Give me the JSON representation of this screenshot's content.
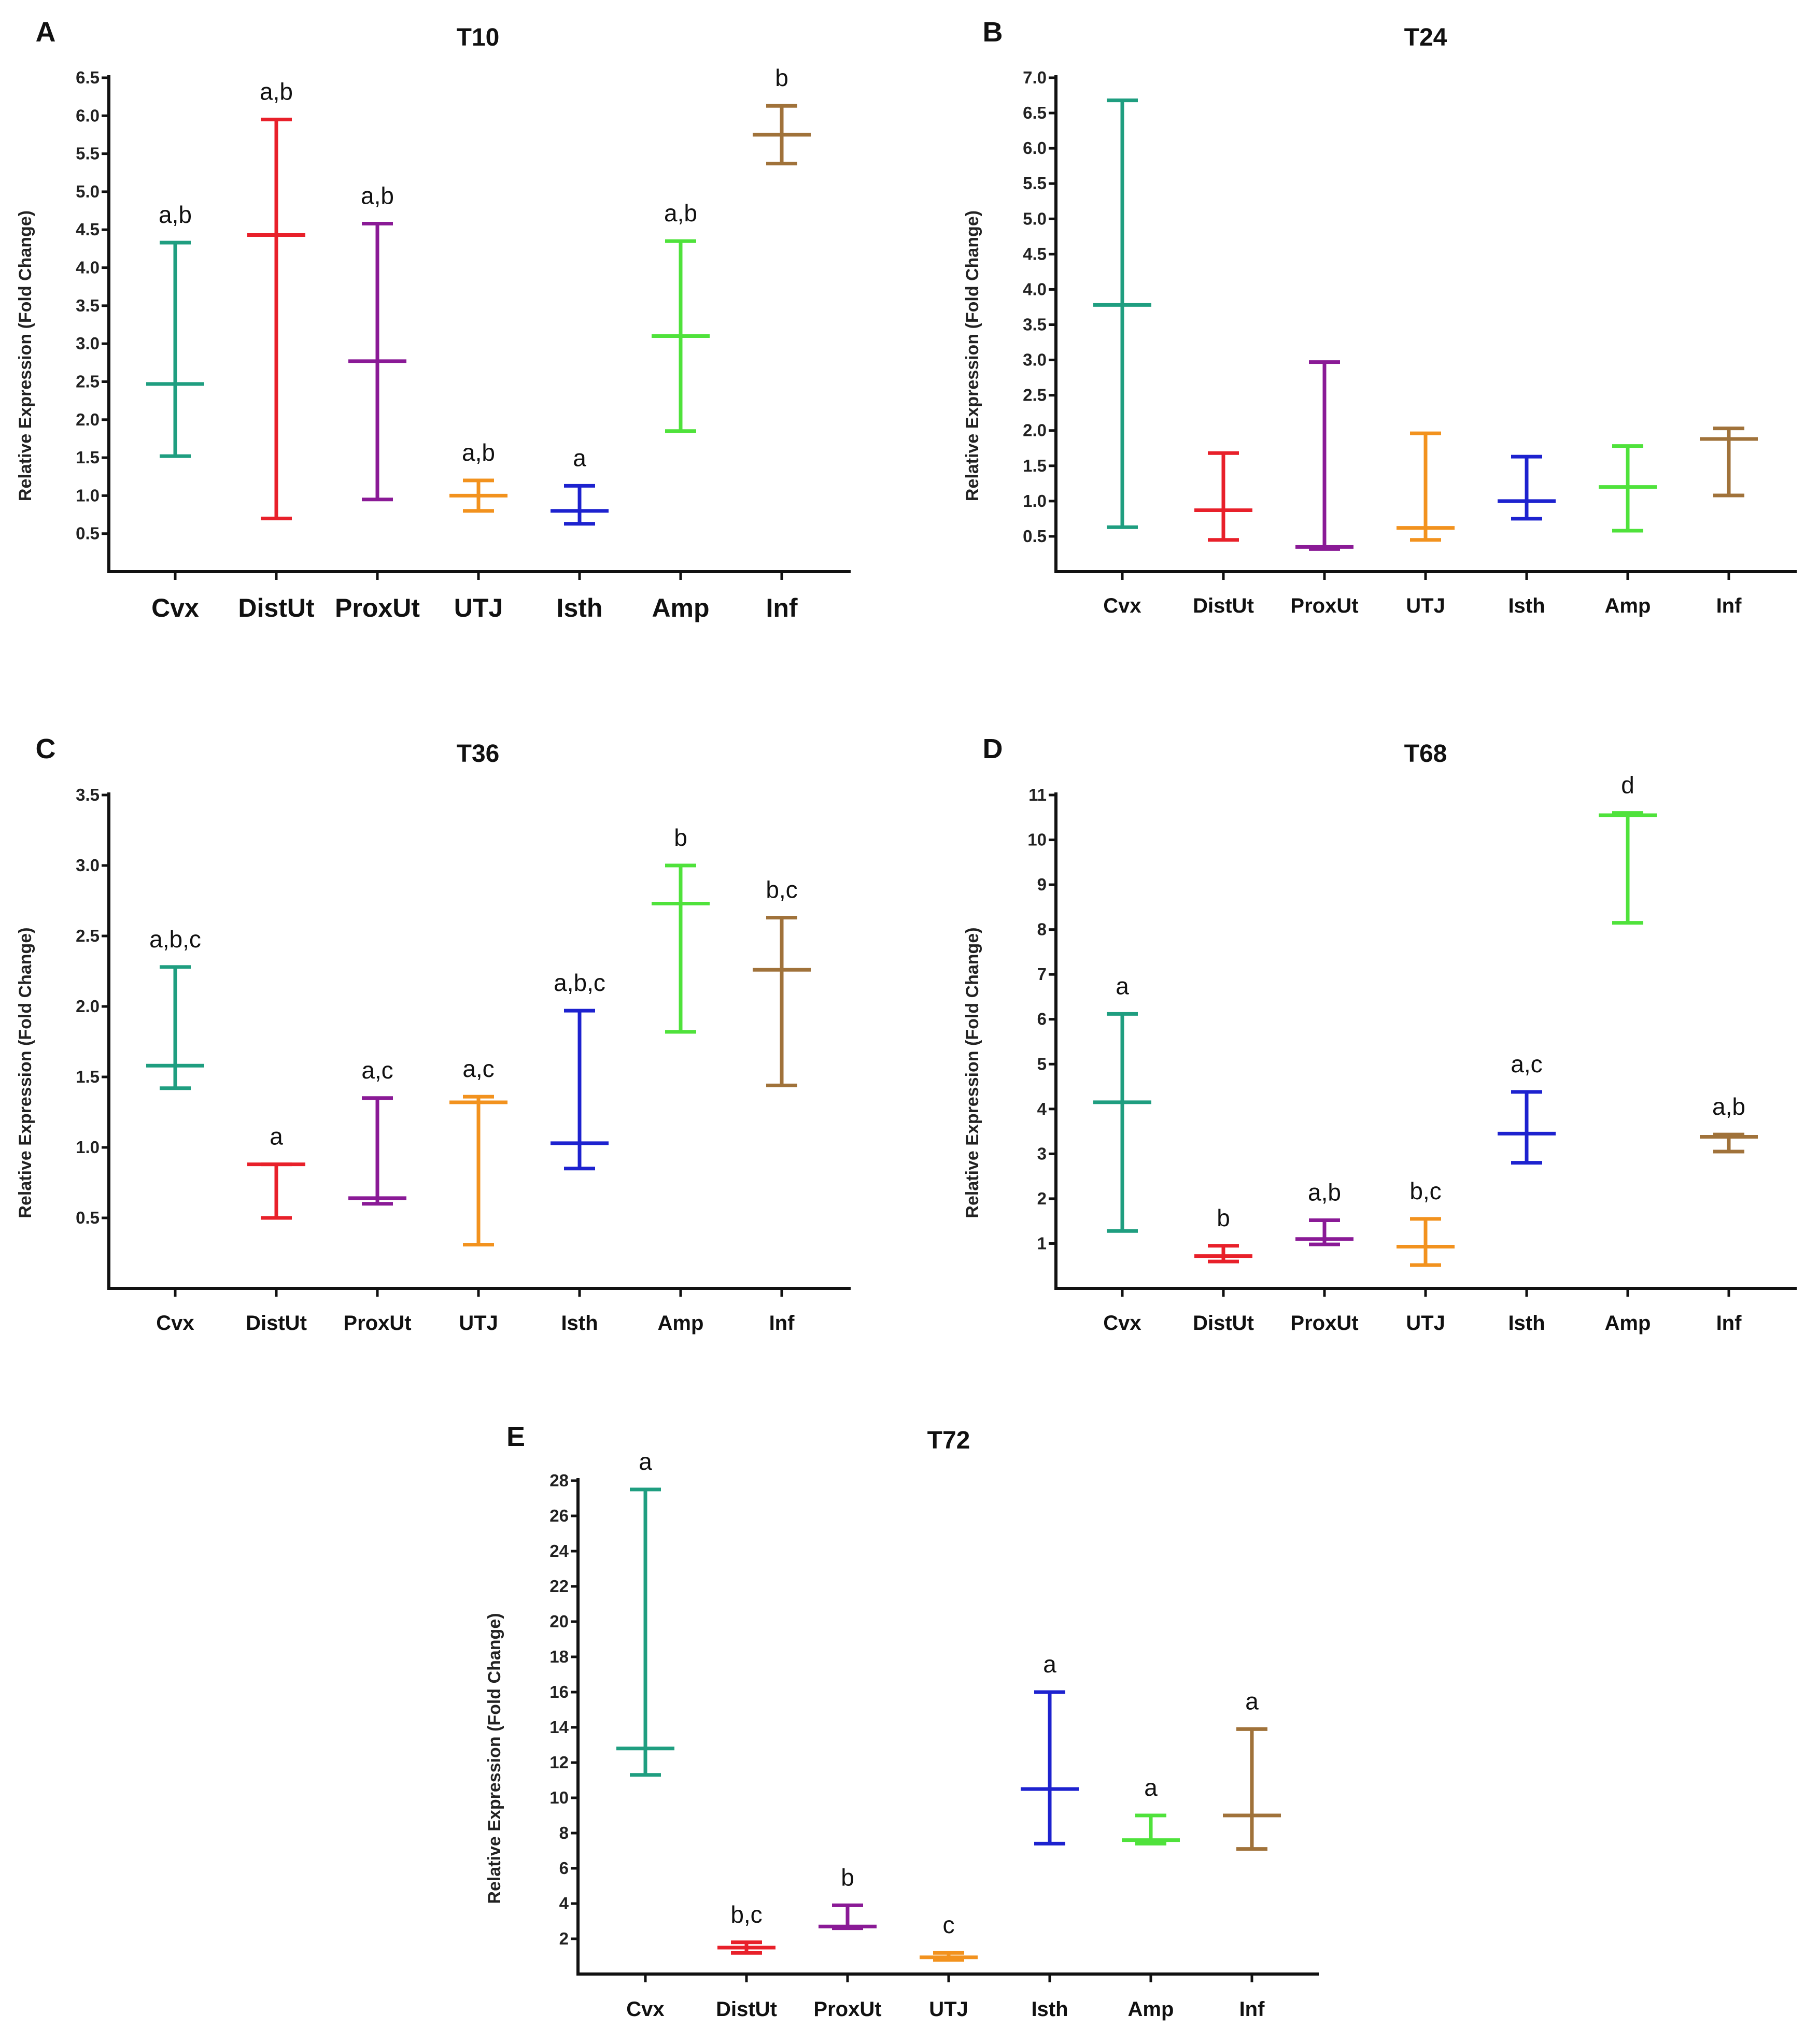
{
  "colors": {
    "Cvx": "#1f9e80",
    "DistUt": "#e8202a",
    "ProxUt": "#8a1a96",
    "UTJ": "#f2921e",
    "Isth": "#1d22cf",
    "Amp": "#4fe23b",
    "Inf": "#a0723a"
  },
  "chart_data": [
    {
      "panel": "A",
      "type": "scatter",
      "title": "T10",
      "ylabel": "Relative Expression (Fold Change)",
      "ylim": [
        0,
        6.5
      ],
      "yticks": [
        "0.5",
        "1.0",
        "1.5",
        "2.0",
        "2.5",
        "3.0",
        "3.5",
        "4.0",
        "4.5",
        "5.0",
        "5.5",
        "6.0",
        "6.5"
      ],
      "categories": [
        "Cvx",
        "DistUt",
        "ProxUt",
        "UTJ",
        "Isth",
        "Amp",
        "Inf"
      ],
      "mean": [
        2.47,
        4.43,
        2.77,
        1.0,
        0.8,
        3.1,
        5.75
      ],
      "low": [
        1.52,
        0.7,
        0.95,
        0.8,
        0.63,
        1.85,
        5.37
      ],
      "high": [
        4.33,
        5.95,
        4.58,
        1.2,
        1.13,
        4.35,
        6.13
      ],
      "significance": [
        "a,b",
        "a,b",
        "a,b",
        "a,b",
        "a",
        "a,b",
        "b"
      ]
    },
    {
      "panel": "B",
      "type": "scatter",
      "title": "T24",
      "ylabel": "Relative Expression (Fold Change)",
      "ylim": [
        0,
        7
      ],
      "yticks": [
        "0.5",
        "1.0",
        "1.5",
        "2.0",
        "2.5",
        "3.0",
        "3.5",
        "4.0",
        "4.5",
        "5.0",
        "5.5",
        "6.0",
        "6.5",
        "7.0"
      ],
      "categories": [
        "Cvx",
        "DistUt",
        "ProxUt",
        "UTJ",
        "Isth",
        "Amp",
        "Inf"
      ],
      "mean": [
        3.78,
        0.87,
        0.35,
        0.62,
        1.0,
        1.2,
        1.88
      ],
      "low": [
        0.63,
        0.45,
        0.32,
        0.45,
        0.75,
        0.58,
        1.08
      ],
      "high": [
        6.68,
        1.68,
        2.97,
        1.96,
        1.63,
        1.78,
        2.03
      ],
      "significance": [
        "",
        "",
        "",
        "",
        "",
        "",
        ""
      ]
    },
    {
      "panel": "C",
      "type": "scatter",
      "title": "T36",
      "ylabel": "Relative Expression (Fold Change)",
      "ylim": [
        0,
        3.5
      ],
      "yticks": [
        "0.5",
        "1.0",
        "1.5",
        "2.0",
        "2.5",
        "3.0",
        "3.5"
      ],
      "categories": [
        "Cvx",
        "DistUt",
        "ProxUt",
        "UTJ",
        "Isth",
        "Amp",
        "Inf"
      ],
      "mean": [
        1.58,
        0.88,
        0.64,
        1.32,
        1.03,
        2.73,
        2.26
      ],
      "low": [
        1.42,
        0.5,
        0.6,
        0.31,
        0.85,
        1.82,
        1.44
      ],
      "high": [
        2.28,
        0.88,
        1.35,
        1.36,
        1.97,
        3.0,
        2.63
      ],
      "significance": [
        "a,b,c",
        "a",
        "a,c",
        "a,c",
        "a,b,c",
        "b",
        "b,c"
      ]
    },
    {
      "panel": "D",
      "type": "scatter",
      "title": "T68",
      "ylabel": "Relative Expression (Fold Change)",
      "ylim": [
        0,
        11
      ],
      "yticks": [
        "1",
        "2",
        "3",
        "4",
        "5",
        "6",
        "7",
        "8",
        "9",
        "10",
        "11"
      ],
      "categories": [
        "Cvx",
        "DistUt",
        "ProxUt",
        "UTJ",
        "Isth",
        "Amp",
        "Inf"
      ],
      "mean": [
        4.15,
        0.72,
        1.1,
        0.93,
        3.45,
        10.55,
        3.38
      ],
      "low": [
        1.28,
        0.6,
        0.98,
        0.52,
        2.8,
        8.15,
        3.05
      ],
      "high": [
        6.12,
        0.95,
        1.52,
        1.55,
        4.38,
        10.6,
        3.43
      ],
      "significance": [
        "a",
        "b",
        "a,b",
        "b,c",
        "a,c",
        "d",
        "a,b"
      ]
    },
    {
      "panel": "E",
      "type": "scatter",
      "title": "T72",
      "ylabel": "Relative Expression (Fold Change)",
      "ylim": [
        0,
        28
      ],
      "yticks": [
        "2",
        "4",
        "6",
        "8",
        "10",
        "12",
        "14",
        "16",
        "18",
        "20",
        "22",
        "24",
        "26",
        "28"
      ],
      "categories": [
        "Cvx",
        "DistUt",
        "ProxUt",
        "UTJ",
        "Isth",
        "Amp",
        "Inf"
      ],
      "mean": [
        12.8,
        1.5,
        2.7,
        0.95,
        10.5,
        7.6,
        9.0
      ],
      "low": [
        11.3,
        1.2,
        2.6,
        0.8,
        7.4,
        7.4,
        7.1
      ],
      "high": [
        27.5,
        1.8,
        3.9,
        1.2,
        16.0,
        9.0,
        13.9
      ],
      "significance": [
        "a",
        "b,c",
        "b",
        "c",
        "a",
        "a",
        "a"
      ]
    }
  ]
}
